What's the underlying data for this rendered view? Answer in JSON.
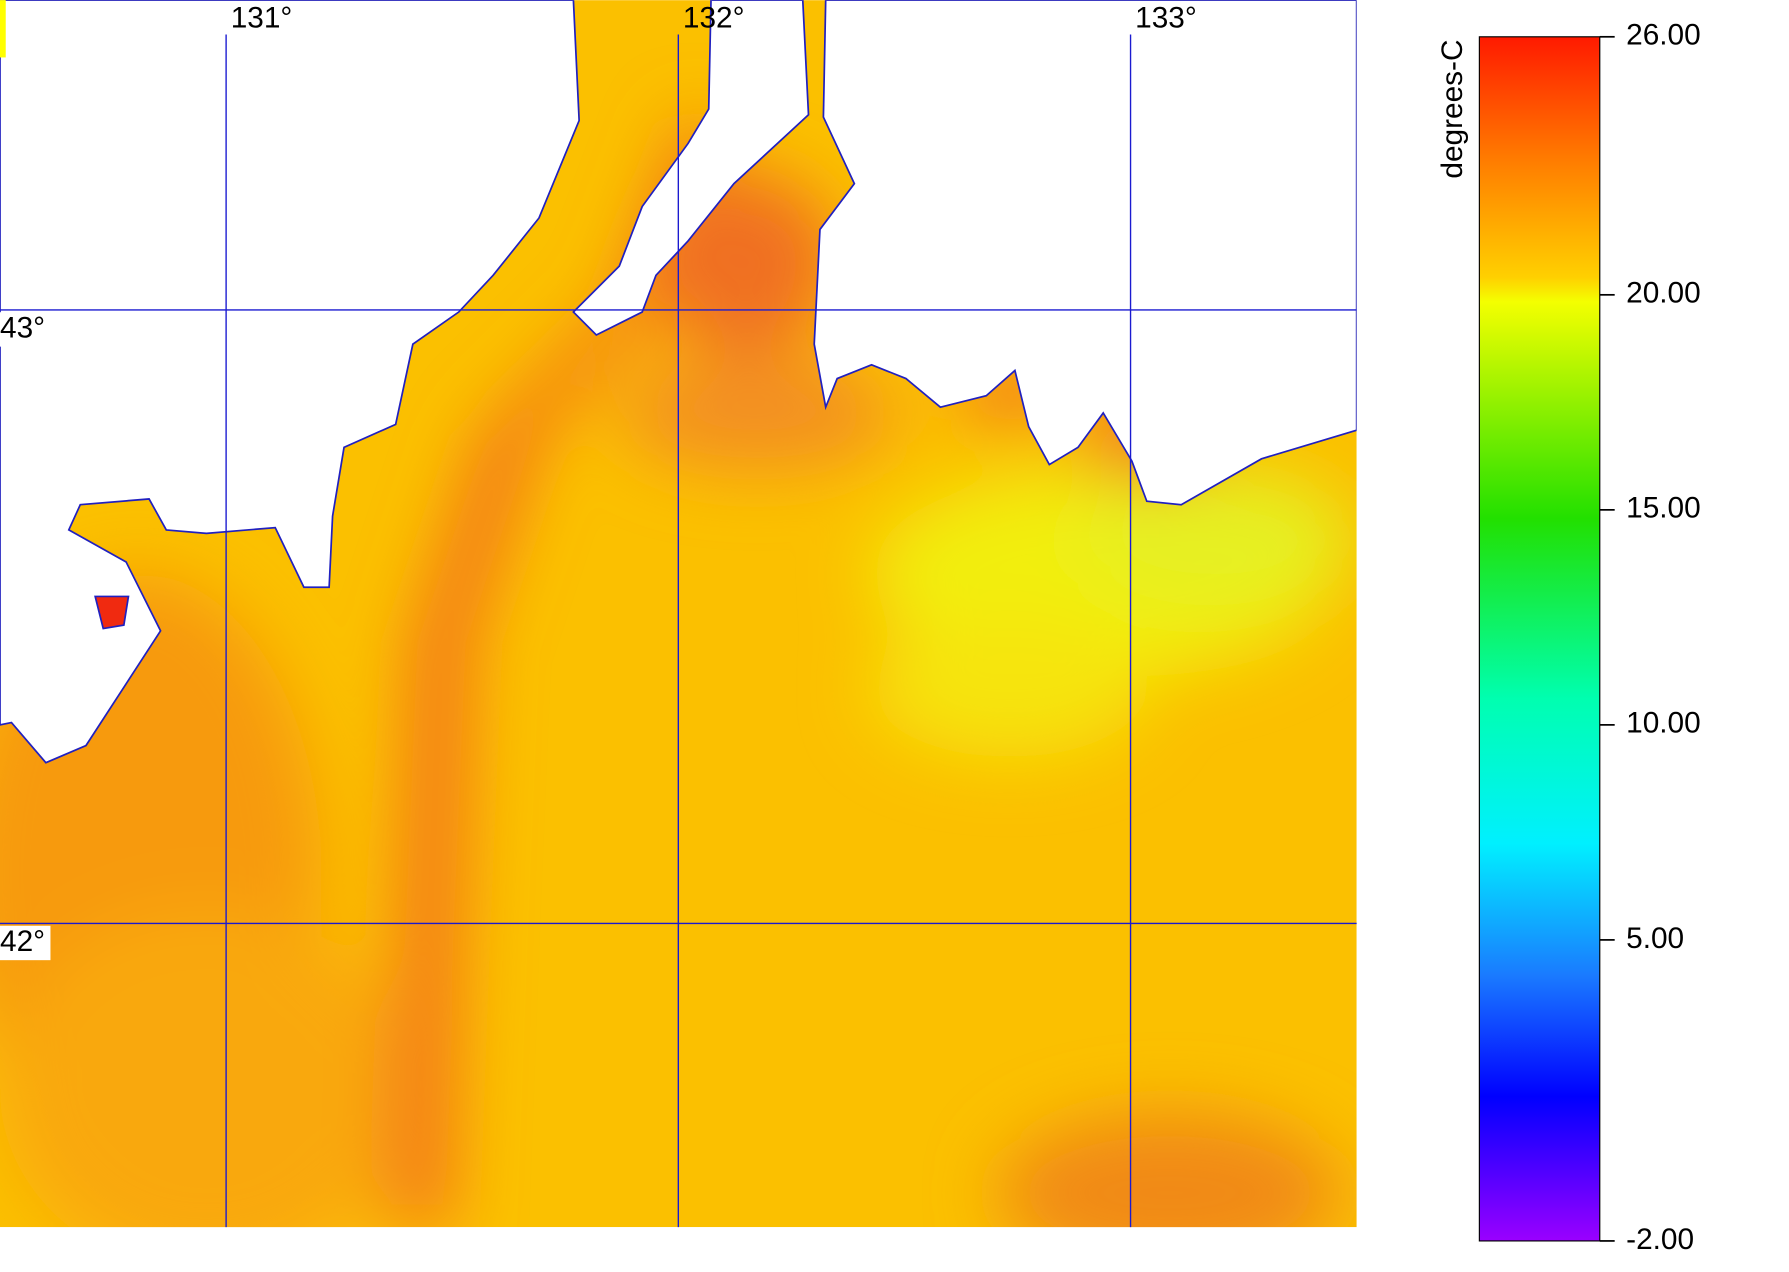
{
  "map": {
    "lon_range": [
      130.5,
      133.5
    ],
    "lat_range": [
      41.505,
      43.505
    ],
    "lon_lines": [
      {
        "value": 131,
        "label": "131°"
      },
      {
        "value": 132,
        "label": "132°"
      },
      {
        "value": 133,
        "label": "133°"
      }
    ],
    "lat_lines": [
      {
        "value": 43,
        "label": "43°"
      },
      {
        "value": 42,
        "label": "42°"
      }
    ]
  },
  "colorbar": {
    "title": "degrees-C",
    "range": [
      -2,
      26
    ],
    "ticks": [
      {
        "value": 26,
        "label": "26.00"
      },
      {
        "value": 20,
        "label": "20.00"
      },
      {
        "value": 15,
        "label": "15.00"
      },
      {
        "value": 10,
        "label": "10.00"
      },
      {
        "value": 5,
        "label": "5.00"
      },
      {
        "value": -2,
        "label": "-2.00"
      }
    ]
  }
}
